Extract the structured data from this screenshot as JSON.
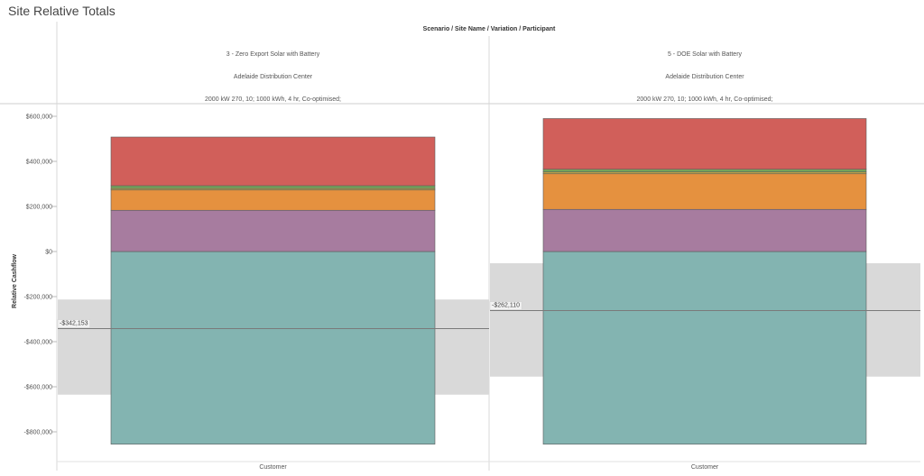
{
  "title": "Site Relative Totals",
  "chart_data": {
    "type": "bar",
    "stacked": true,
    "title": "Site Relative Totals",
    "column_header": "Scenario / Site Name / Variation / Participant",
    "ylabel": "Relative Cashflow",
    "ylim": [
      -860000,
      660000
    ],
    "y_ticks": [
      600000,
      400000,
      200000,
      0,
      -200000,
      -400000,
      -600000,
      -800000
    ],
    "y_tick_labels": [
      "$600,000",
      "$400,000",
      "$200,000",
      "$0",
      "-$200,000",
      "-$400,000",
      "-$600,000",
      "-$800,000"
    ],
    "panels": [
      {
        "scenario": "3 - Zero Export Solar with Battery",
        "site": "Adelaide Distribution Center",
        "variation": "2000 kW 270, 10; 1000 kWh, 4 hr, Co-optimised;",
        "category": "Customer",
        "segments": [
          {
            "color": "#83b4b1",
            "from": -855000,
            "to": 0
          },
          {
            "color": "#a77c9f",
            "from": 0,
            "to": 183000
          },
          {
            "color": "#e5913f",
            "from": 183000,
            "to": 273000
          },
          {
            "color": "#c1a548",
            "from": 273000,
            "to": 280000
          },
          {
            "color": "#76a55b",
            "from": 280000,
            "to": 292000
          },
          {
            "color": "#d15f5a",
            "from": 292000,
            "to": 508000
          }
        ],
        "reference_value": -342153,
        "reference_label": "-$342,153",
        "band": [
          -635000,
          -213000
        ]
      },
      {
        "scenario": "5 - DOE Solar with Battery",
        "site": "Adelaide Distribution Center",
        "variation": "2000 kW 270, 10; 1000 kWh, 4 hr, Co-optimised;",
        "category": "Customer",
        "segments": [
          {
            "color": "#83b4b1",
            "from": -855000,
            "to": 0
          },
          {
            "color": "#a77c9f",
            "from": 0,
            "to": 187000
          },
          {
            "color": "#e5913f",
            "from": 187000,
            "to": 345000
          },
          {
            "color": "#c1a548",
            "from": 345000,
            "to": 353000
          },
          {
            "color": "#76a55b",
            "from": 353000,
            "to": 365000
          },
          {
            "color": "#d15f5a",
            "from": 365000,
            "to": 590000
          }
        ],
        "reference_value": -262110,
        "reference_label": "-$262,110",
        "band": [
          -555000,
          -52000
        ]
      }
    ]
  }
}
